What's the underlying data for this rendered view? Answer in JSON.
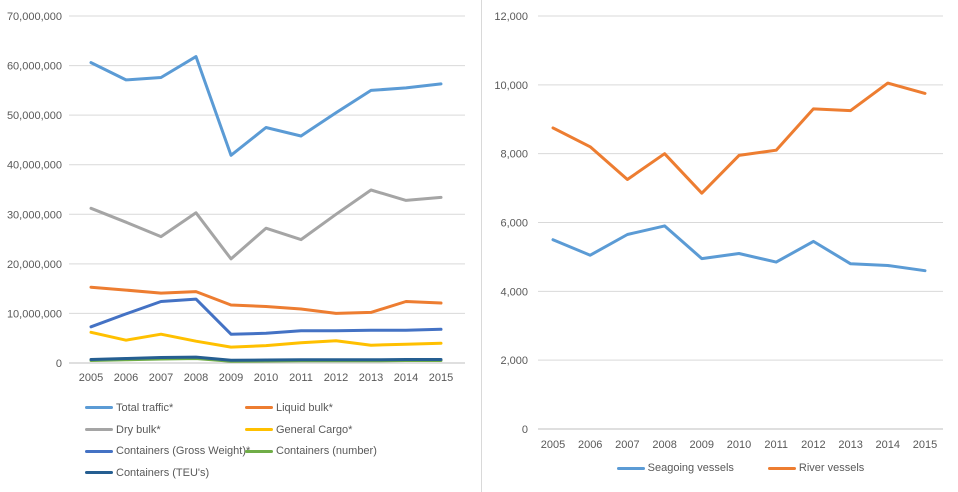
{
  "chart_data": [
    {
      "type": "line",
      "title": "",
      "xlabel": "",
      "ylabel": "",
      "x": [
        "2005",
        "2006",
        "2007",
        "2008",
        "2009",
        "2010",
        "2011",
        "2012",
        "2013",
        "2014",
        "2015"
      ],
      "ylim": [
        0,
        70000000
      ],
      "grid": true,
      "legend_position": "bottom-left-two-columns",
      "yticks": [
        {
          "value": 0,
          "label": "0"
        },
        {
          "value": 10000000,
          "label": "10,000,000"
        },
        {
          "value": 20000000,
          "label": "20,000,000"
        },
        {
          "value": 30000000,
          "label": "30,000,000"
        },
        {
          "value": 40000000,
          "label": "40,000,000"
        },
        {
          "value": 50000000,
          "label": "50,000,000"
        },
        {
          "value": 60000000,
          "label": "60,000,000"
        },
        {
          "value": 70000000,
          "label": "70,000,000"
        }
      ],
      "series": [
        {
          "name": "Total traffic*",
          "color": "#5B9BD5",
          "values": [
            60600000,
            57100000,
            57600000,
            61800000,
            41900000,
            47500000,
            45800000,
            50500000,
            55000000,
            55500000,
            56300000
          ]
        },
        {
          "name": "Liquid bulk*",
          "color": "#ED7D31",
          "values": [
            15300000,
            14700000,
            14100000,
            14400000,
            11700000,
            11400000,
            10900000,
            10000000,
            10200000,
            12400000,
            12100000
          ]
        },
        {
          "name": "Dry bulk*",
          "color": "#A5A5A5",
          "values": [
            31200000,
            28400000,
            25500000,
            30300000,
            21000000,
            27200000,
            24900000,
            30000000,
            34900000,
            32800000,
            33400000
          ]
        },
        {
          "name": "General Cargo*",
          "color": "#FFC000",
          "values": [
            6200000,
            4600000,
            5800000,
            4400000,
            3200000,
            3500000,
            4100000,
            4500000,
            3600000,
            3800000,
            4000000
          ]
        },
        {
          "name": "Containers (Gross Weight)*",
          "color": "#4472C4",
          "values": [
            7300000,
            9900000,
            12400000,
            12900000,
            5800000,
            6000000,
            6500000,
            6500000,
            6600000,
            6600000,
            6800000
          ]
        },
        {
          "name": "Containers (number)",
          "color": "#70AD47",
          "values": [
            500000,
            650000,
            800000,
            900000,
            350000,
            400000,
            450000,
            450000,
            450000,
            500000,
            500000
          ]
        },
        {
          "name": "Containers (TEU's)",
          "color": "#255E91",
          "values": [
            700000,
            900000,
            1100000,
            1200000,
            550000,
            600000,
            650000,
            650000,
            650000,
            700000,
            700000
          ]
        }
      ]
    },
    {
      "type": "line",
      "title": "",
      "xlabel": "",
      "ylabel": "",
      "x": [
        "2005",
        "2006",
        "2007",
        "2008",
        "2009",
        "2010",
        "2011",
        "2012",
        "2013",
        "2014",
        "2015"
      ],
      "ylim": [
        0,
        12000
      ],
      "grid": true,
      "legend_position": "bottom-center",
      "yticks": [
        {
          "value": 0,
          "label": "0"
        },
        {
          "value": 2000,
          "label": "2,000"
        },
        {
          "value": 4000,
          "label": "4,000"
        },
        {
          "value": 6000,
          "label": "6,000"
        },
        {
          "value": 8000,
          "label": "8,000"
        },
        {
          "value": 10000,
          "label": "10,000"
        },
        {
          "value": 12000,
          "label": "12,000"
        }
      ],
      "series": [
        {
          "name": "Seagoing vessels",
          "color": "#5B9BD5",
          "values": [
            5500,
            5050,
            5650,
            5900,
            4950,
            5100,
            4850,
            5450,
            4800,
            4750,
            4600
          ]
        },
        {
          "name": "River vessels",
          "color": "#ED7D31",
          "values": [
            8750,
            8200,
            7250,
            8000,
            6850,
            7950,
            8100,
            9300,
            9250,
            10050,
            9750
          ]
        }
      ]
    }
  ],
  "colors": {
    "gridline": "#D9D9D9",
    "axis_line": "#BFBFBF",
    "axis_text": "#595959"
  }
}
